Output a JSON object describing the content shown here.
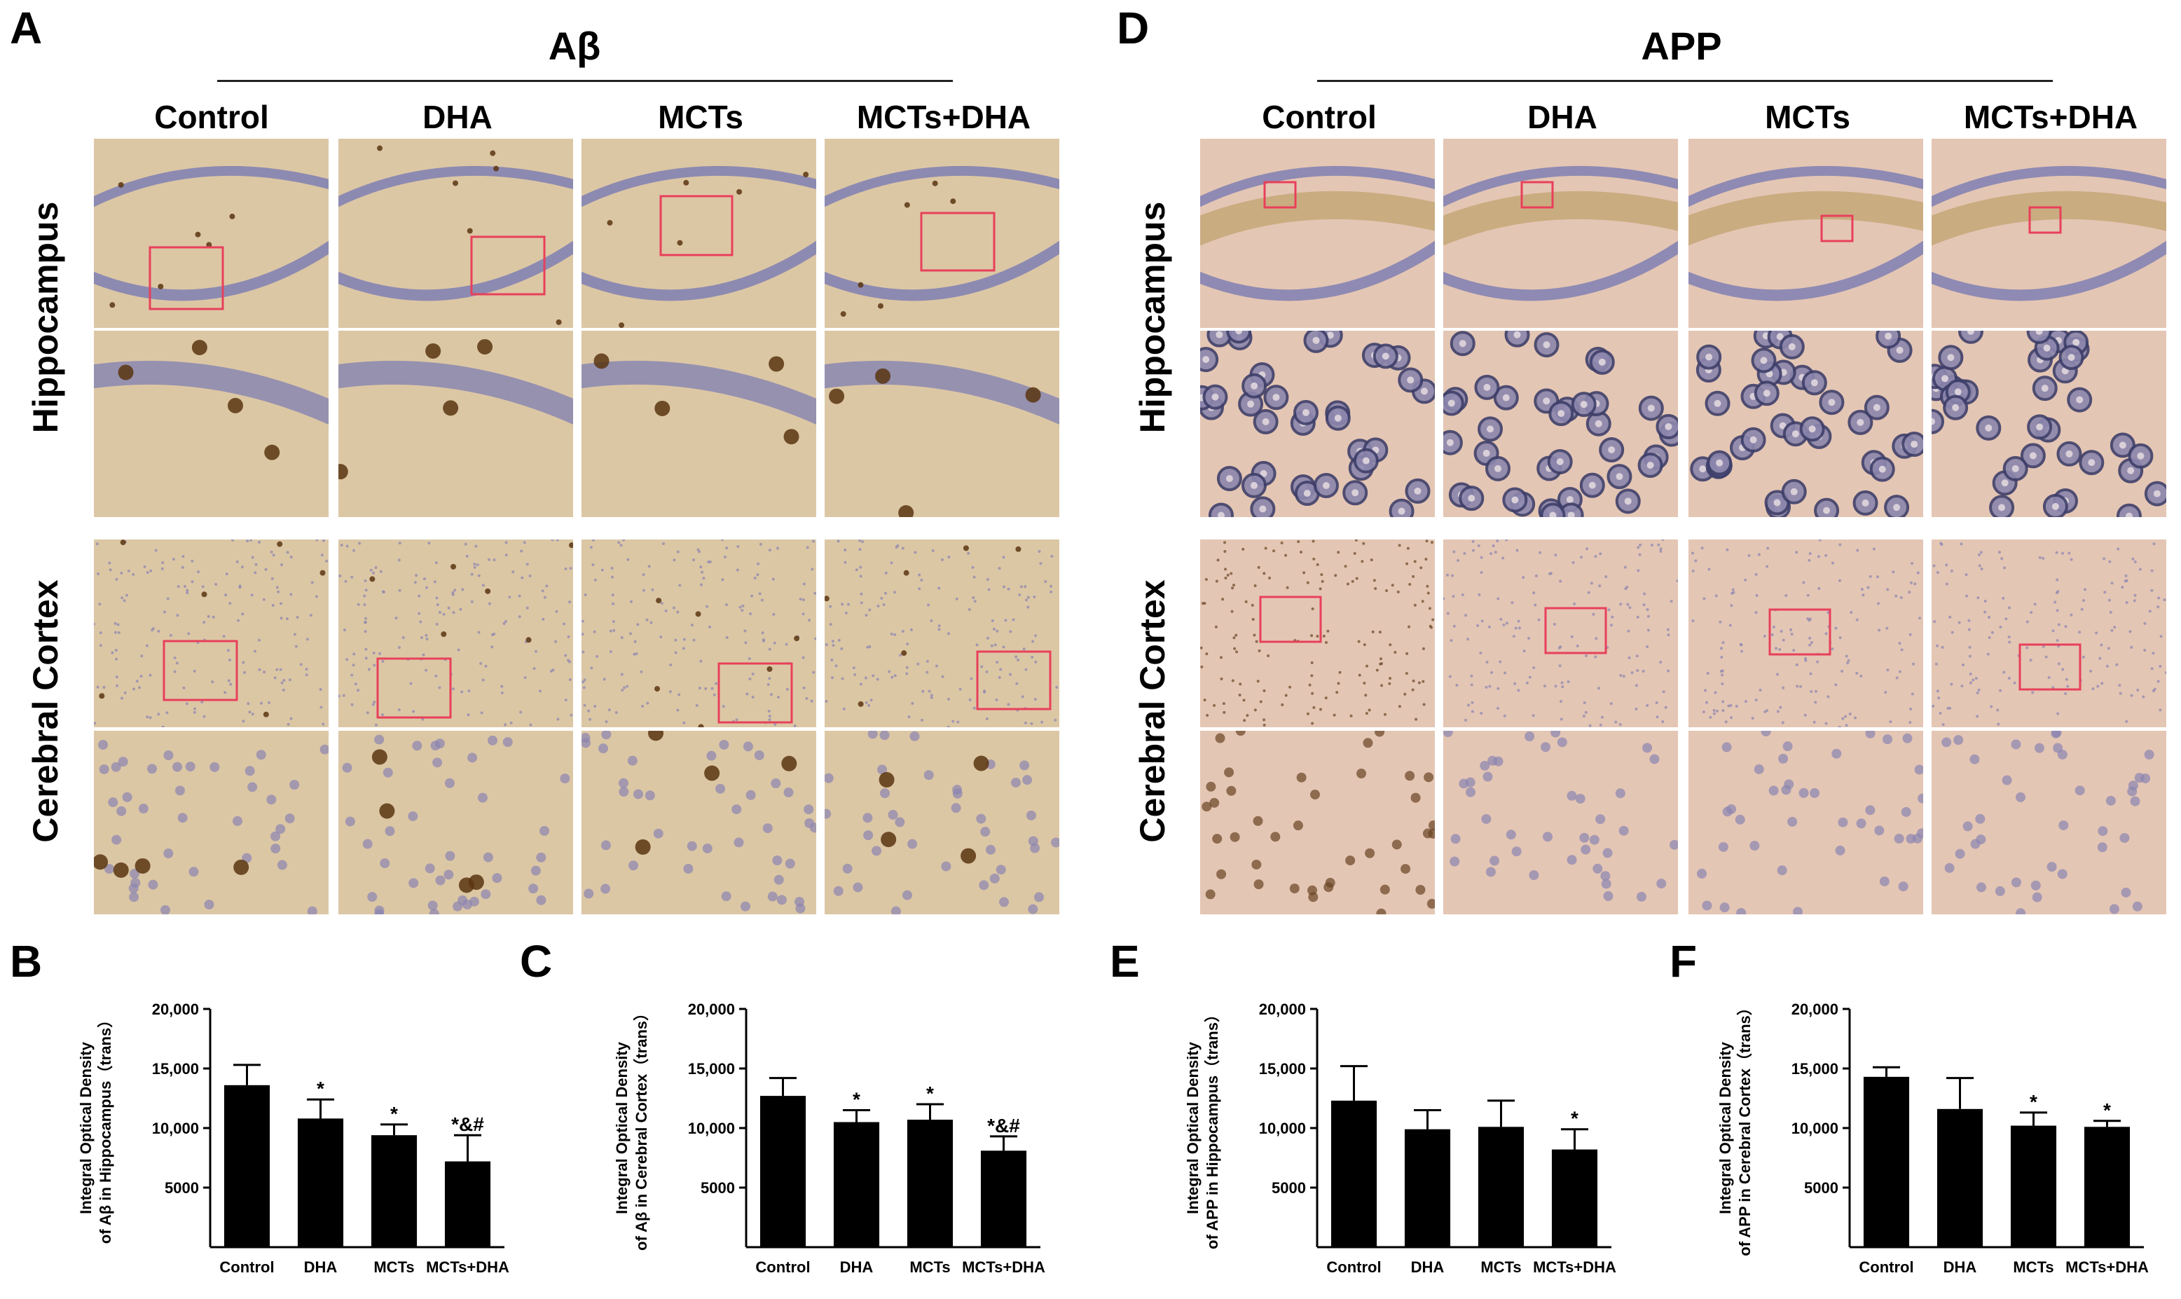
{
  "panels": {
    "A": "A",
    "D": "D",
    "B": "B",
    "C": "C",
    "E": "E",
    "F": "F"
  },
  "stains": {
    "abeta": "Aβ",
    "app": "APP"
  },
  "columns": [
    "Control",
    "DHA",
    "MCTs",
    "MCTs+DHA"
  ],
  "rows": {
    "hippocampus": "Hippocampus",
    "cortex": "Cerebral Cortex"
  },
  "colors": {
    "bar": "#000000",
    "roi_box": "#e8405a",
    "tissue_tan": "#dcc7a5",
    "hematoxylin": "#7f7fb3",
    "dab": "#5a3510"
  },
  "chart_data": [
    {
      "panel": "B",
      "type": "bar",
      "categories": [
        "Control",
        "DHA",
        "MCTs",
        "MCTs+DHA"
      ],
      "values": [
        13600,
        10800,
        9400,
        7200
      ],
      "errors": [
        1700,
        1600,
        900,
        2200
      ],
      "significance": [
        "",
        "*",
        "*",
        "*&#"
      ],
      "ylabel": "Integral Optical Density\nof Aβ in Hippocampus（trans）",
      "yticks": [
        "5000",
        "10,000",
        "15,000",
        "20,000"
      ],
      "ylim": [
        0,
        20000
      ]
    },
    {
      "panel": "C",
      "type": "bar",
      "categories": [
        "Control",
        "DHA",
        "MCTs",
        "MCTs+DHA"
      ],
      "values": [
        12700,
        10500,
        10700,
        8100
      ],
      "errors": [
        1500,
        1000,
        1300,
        1200
      ],
      "significance": [
        "",
        "*",
        "*",
        "*&#"
      ],
      "ylabel": "Integral Optical Density\nof Aβ in Cerebral Cortex（trans）",
      "yticks": [
        "5000",
        "10,000",
        "15,000",
        "20,000"
      ],
      "ylim": [
        0,
        20000
      ]
    },
    {
      "panel": "E",
      "type": "bar",
      "categories": [
        "Control",
        "DHA",
        "MCTs",
        "MCTs+DHA"
      ],
      "values": [
        12300,
        9900,
        10100,
        8200
      ],
      "errors": [
        2900,
        1600,
        2200,
        1700
      ],
      "significance": [
        "",
        "",
        "",
        "*"
      ],
      "ylabel": "Integral Optical Density\nof APP in Hippocampus（trans）",
      "yticks": [
        "5000",
        "10,000",
        "15,000",
        "20,000"
      ],
      "ylim": [
        0,
        20000
      ]
    },
    {
      "panel": "F",
      "type": "bar",
      "categories": [
        "Control",
        "DHA",
        "MCTs",
        "MCTs+DHA"
      ],
      "values": [
        14300,
        11600,
        10200,
        10100
      ],
      "errors": [
        800,
        2600,
        1100,
        500
      ],
      "significance": [
        "",
        "",
        "*",
        "*"
      ],
      "ylabel": "Integral Optical Density\nof APP in Cerebral Cortex（trans）",
      "yticks": [
        "5000",
        "10,000",
        "15,000",
        "20,000"
      ],
      "ylim": [
        0,
        20000
      ]
    }
  ]
}
